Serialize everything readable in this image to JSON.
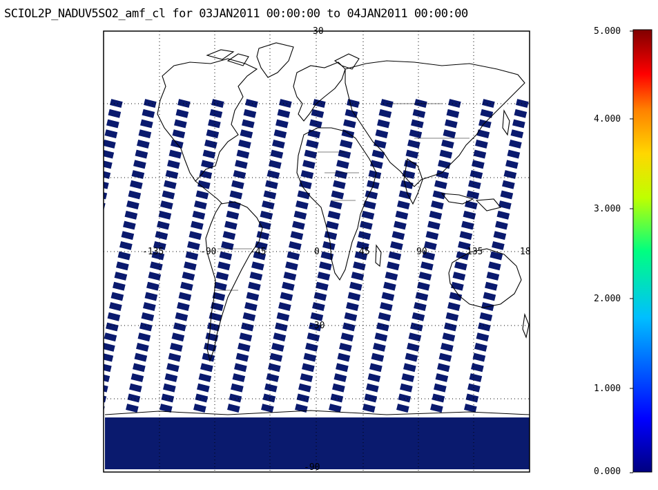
{
  "title": "SCIOL2P_NADUV5SO2_amf_cl for 03JAN2011 00:00:00 to 04JAN2011 00:00:00",
  "map": {
    "projection": "equidistant",
    "lat_labels": [
      "30",
      "-30",
      "-90"
    ],
    "lon_labels": [
      "-135",
      "-90",
      "-45",
      "0",
      "45",
      "90",
      "135",
      "18"
    ],
    "grid": true,
    "swath_color": "#0a1a6e",
    "land_outline_color": "#000000"
  },
  "colorbar": {
    "min": 0,
    "max": 5,
    "tick_labels": [
      "5.000",
      "4.000",
      "3.000",
      "2.000",
      "1.000",
      "0.000"
    ],
    "colors": [
      "#000080",
      "#0000ff",
      "#00bfff",
      "#00ff80",
      "#bfff00",
      "#ffd700",
      "#ff8000",
      "#ff0000",
      "#800000"
    ]
  },
  "chart_data": {
    "type": "heatmap",
    "title": "SCIOL2P_NADUV5SO2_amf_cl for 03JAN2011 00:00:00 to 04JAN2011 00:00:00",
    "value_range": [
      0,
      5
    ],
    "colorbar_ticks": [
      5.0,
      4.0,
      3.0,
      2.0,
      1.0,
      0.0
    ],
    "dominant_value": 0
  }
}
